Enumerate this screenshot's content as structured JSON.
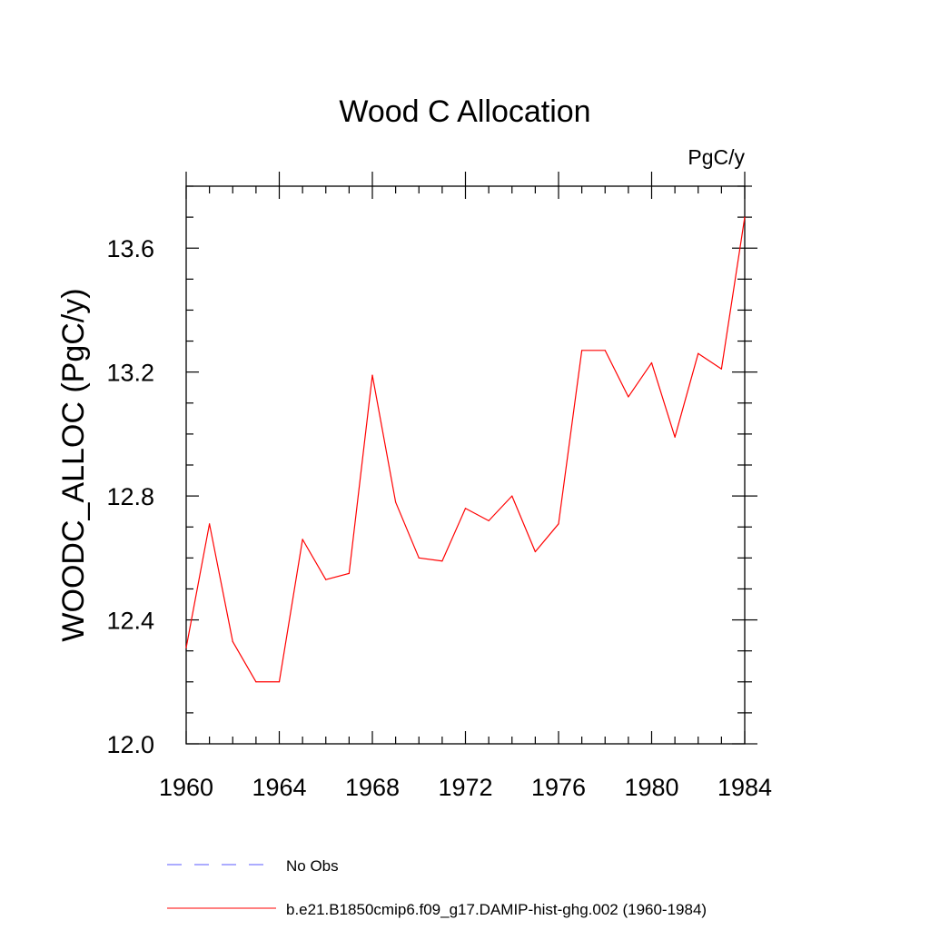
{
  "chart_data": {
    "type": "line",
    "title": "Wood C Allocation",
    "units_label": "PgC/y",
    "ylabel": "WOODC_ALLOC  (PgC/y)",
    "xlabel": "",
    "xlim": [
      1960,
      1984
    ],
    "ylim": [
      12.0,
      13.8
    ],
    "x_ticks": [
      1960,
      1964,
      1968,
      1972,
      1976,
      1980,
      1984
    ],
    "y_ticks": [
      12.0,
      12.4,
      12.8,
      13.2,
      13.6
    ],
    "y_tick_labels": [
      "12.0",
      "12.4",
      "12.8",
      "13.2",
      "13.6"
    ],
    "grid": false,
    "legend_position": "bottom",
    "series": [
      {
        "name": "b.e21.B1850cmip6.f09_g17.DAMIP-hist-ghg.002 (1960-1984)",
        "color": "#ff0000",
        "style": "solid",
        "x": [
          1960,
          1961,
          1962,
          1963,
          1964,
          1965,
          1966,
          1967,
          1968,
          1969,
          1970,
          1971,
          1972,
          1973,
          1974,
          1975,
          1976,
          1977,
          1978,
          1979,
          1980,
          1981,
          1982,
          1983,
          1984
        ],
        "y": [
          12.31,
          12.71,
          12.33,
          12.2,
          12.2,
          12.66,
          12.53,
          12.55,
          13.19,
          12.78,
          12.6,
          12.59,
          12.76,
          12.72,
          12.8,
          12.62,
          12.71,
          13.27,
          13.27,
          13.12,
          13.23,
          12.99,
          13.26,
          13.21,
          13.7
        ]
      }
    ],
    "legend": [
      {
        "label": "No Obs",
        "color": "#5a5aff",
        "style": "dashed"
      },
      {
        "label": "b.e21.B1850cmip6.f09_g17.DAMIP-hist-ghg.002 (1960-1984)",
        "color": "#ff0000",
        "style": "solid"
      }
    ]
  }
}
